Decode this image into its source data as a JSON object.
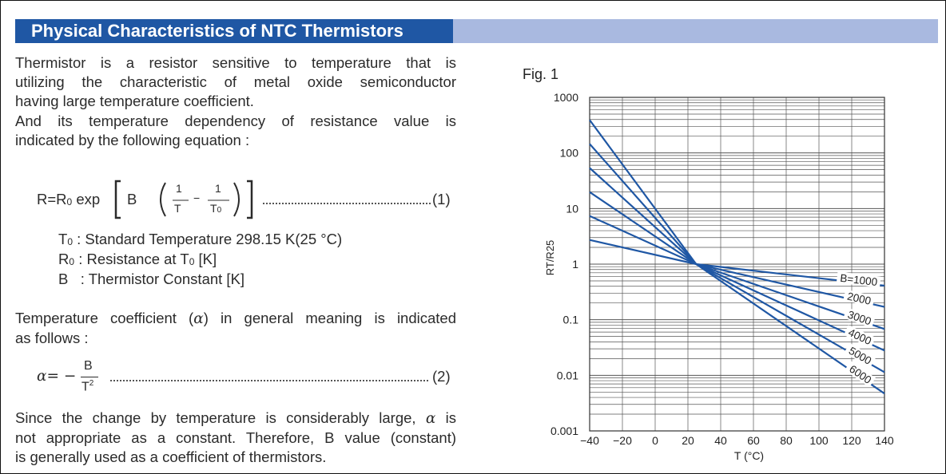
{
  "header": {
    "title": "Physical Characteristics of NTC Thermistors"
  },
  "intro": {
    "lines": [
      "Thermistor is a resistor sensitive to temperature that is",
      "utilizing the characteristic of metal oxide semiconductor",
      "having large temperature coefficient."
    ],
    "lines2": [
      "And its temperature dependency of resistance value is",
      "indicated by the following equation :"
    ]
  },
  "equation1": {
    "lhs": "R=R",
    "sub0": "0",
    "exp": "exp",
    "b": "B",
    "one_a": "1",
    "t": "T",
    "minus": "−",
    "one_b": "1",
    "t0": "T",
    "t0_sub": "0",
    "number": "(1)"
  },
  "definitions": [
    {
      "sym": "T",
      "sub": "0",
      "text": " : Standard Temperature 298.15 K(25 °C)"
    },
    {
      "sym": "R",
      "sub": "0",
      "text": " : Resistance at T",
      "tail_sub": "0",
      "tail": " [K]"
    },
    {
      "sym": "B",
      "sub": "",
      "text": "   : Thermistor Constant [K]"
    }
  ],
  "alpha_intro": {
    "lines": [
      {
        "pre": "Temperature coefficient (",
        "sym": "α",
        "post": ") in general meaning is indicated"
      },
      {
        "pre": "as follows :",
        "sym": "",
        "post": ""
      }
    ]
  },
  "equation2": {
    "lhs": "α= −",
    "num": "B",
    "den": "T",
    "den_sup": "2",
    "number": "(2)"
  },
  "closing": {
    "lines": [
      {
        "pre": "Since the change by temperature is considerably large, ",
        "sym": "α",
        "post": " is"
      },
      {
        "pre": "not appropriate as a constant. Therefore, B value (constant)",
        "sym": "",
        "post": ""
      },
      {
        "pre": "is generally used as a coefficient of thermistors.",
        "sym": "",
        "post": ""
      }
    ]
  },
  "figure": {
    "label": "Fig. 1"
  },
  "chart_data": {
    "type": "line",
    "title": "",
    "xlabel": "T (°C)",
    "ylabel": "RT/R25",
    "xlim": [
      -40,
      140
    ],
    "ylim": [
      0.001,
      1000
    ],
    "yscale": "log",
    "grid": true,
    "x_ticks": [
      -40,
      -20,
      0,
      20,
      40,
      60,
      80,
      100,
      120,
      140
    ],
    "y_ticks": [
      1000,
      100,
      10,
      1,
      0.1,
      0.01,
      0.001
    ],
    "y_tick_labels": [
      "1000",
      "100",
      "10",
      "1",
      "0.1",
      "0.01",
      "0.001"
    ],
    "x_tick_labels": [
      "−40",
      "−20",
      "0",
      "20",
      "40",
      "60",
      "80",
      "100",
      "120",
      "140"
    ],
    "series": [
      {
        "name": "B=1000",
        "x": [
          -40,
          25,
          140
        ],
        "y": [
          2.72,
          1.0,
          0.41
        ]
      },
      {
        "name": "2000",
        "x": [
          -40,
          25,
          140
        ],
        "y": [
          7.35,
          1.0,
          0.17
        ]
      },
      {
        "name": "3000",
        "x": [
          -40,
          25,
          140
        ],
        "y": [
          19.8,
          1.0,
          0.068
        ]
      },
      {
        "name": "4000",
        "x": [
          -40,
          25,
          140
        ],
        "y": [
          53.6,
          1.0,
          0.028
        ]
      },
      {
        "name": "5000",
        "x": [
          -40,
          25,
          140
        ],
        "y": [
          144.9,
          1.0,
          0.0114
        ]
      },
      {
        "name": "6000",
        "x": [
          -40,
          25,
          140
        ],
        "y": [
          391.0,
          1.0,
          0.0047
        ]
      }
    ],
    "line_color": "#1f57a4"
  }
}
